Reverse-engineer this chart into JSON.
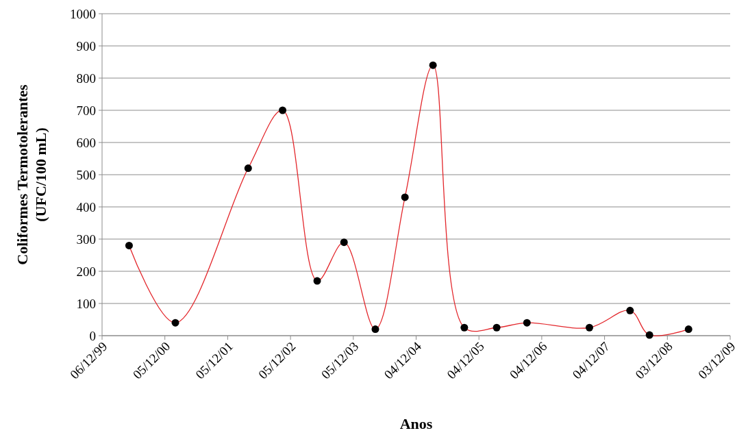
{
  "chart_data": {
    "type": "line",
    "xlabel": "Anos",
    "ylabel": "Coliformes Termotolerantes\n(UFC/100 mL)",
    "x": [
      "2000-05-11",
      "2001-02-04",
      "2002-04-03",
      "2002-10-20",
      "2003-05-09",
      "2003-10-12",
      "2004-04-11",
      "2004-09-30",
      "2005-03-12",
      "2005-09-10",
      "2006-03-17",
      "2006-09-09",
      "2007-09-07",
      "2008-04-30",
      "2008-08-21",
      "2009-04-05"
    ],
    "series": [
      {
        "color": "#e3262b",
        "values": [
          280,
          40,
          520,
          700,
          170,
          290,
          20,
          430,
          840,
          25,
          25,
          40,
          25,
          78,
          2,
          20
        ]
      }
    ],
    "xlim": [
      "1999-12-06",
      "2009-12-03"
    ],
    "xticks": [
      {
        "value": "1999-12-06",
        "label": "06/12/99"
      },
      {
        "value": "2000-12-05",
        "label": "05/12/00"
      },
      {
        "value": "2001-12-05",
        "label": "05/12/01"
      },
      {
        "value": "2002-12-05",
        "label": "05/12/02"
      },
      {
        "value": "2003-12-05",
        "label": "05/12/03"
      },
      {
        "value": "2004-12-04",
        "label": "04/12/04"
      },
      {
        "value": "2005-12-04",
        "label": "04/12/05"
      },
      {
        "value": "2006-12-04",
        "label": "04/12/06"
      },
      {
        "value": "2007-12-04",
        "label": "04/12/07"
      },
      {
        "value": "2008-12-03",
        "label": "03/12/08"
      },
      {
        "value": "2009-12-03",
        "label": "03/12/09"
      }
    ],
    "ylim": [
      0,
      1000
    ],
    "yticks": [
      0,
      100,
      200,
      300,
      400,
      500,
      600,
      700,
      800,
      900,
      1000
    ],
    "grid": "y",
    "marker": "circle",
    "line_style": "solid"
  }
}
